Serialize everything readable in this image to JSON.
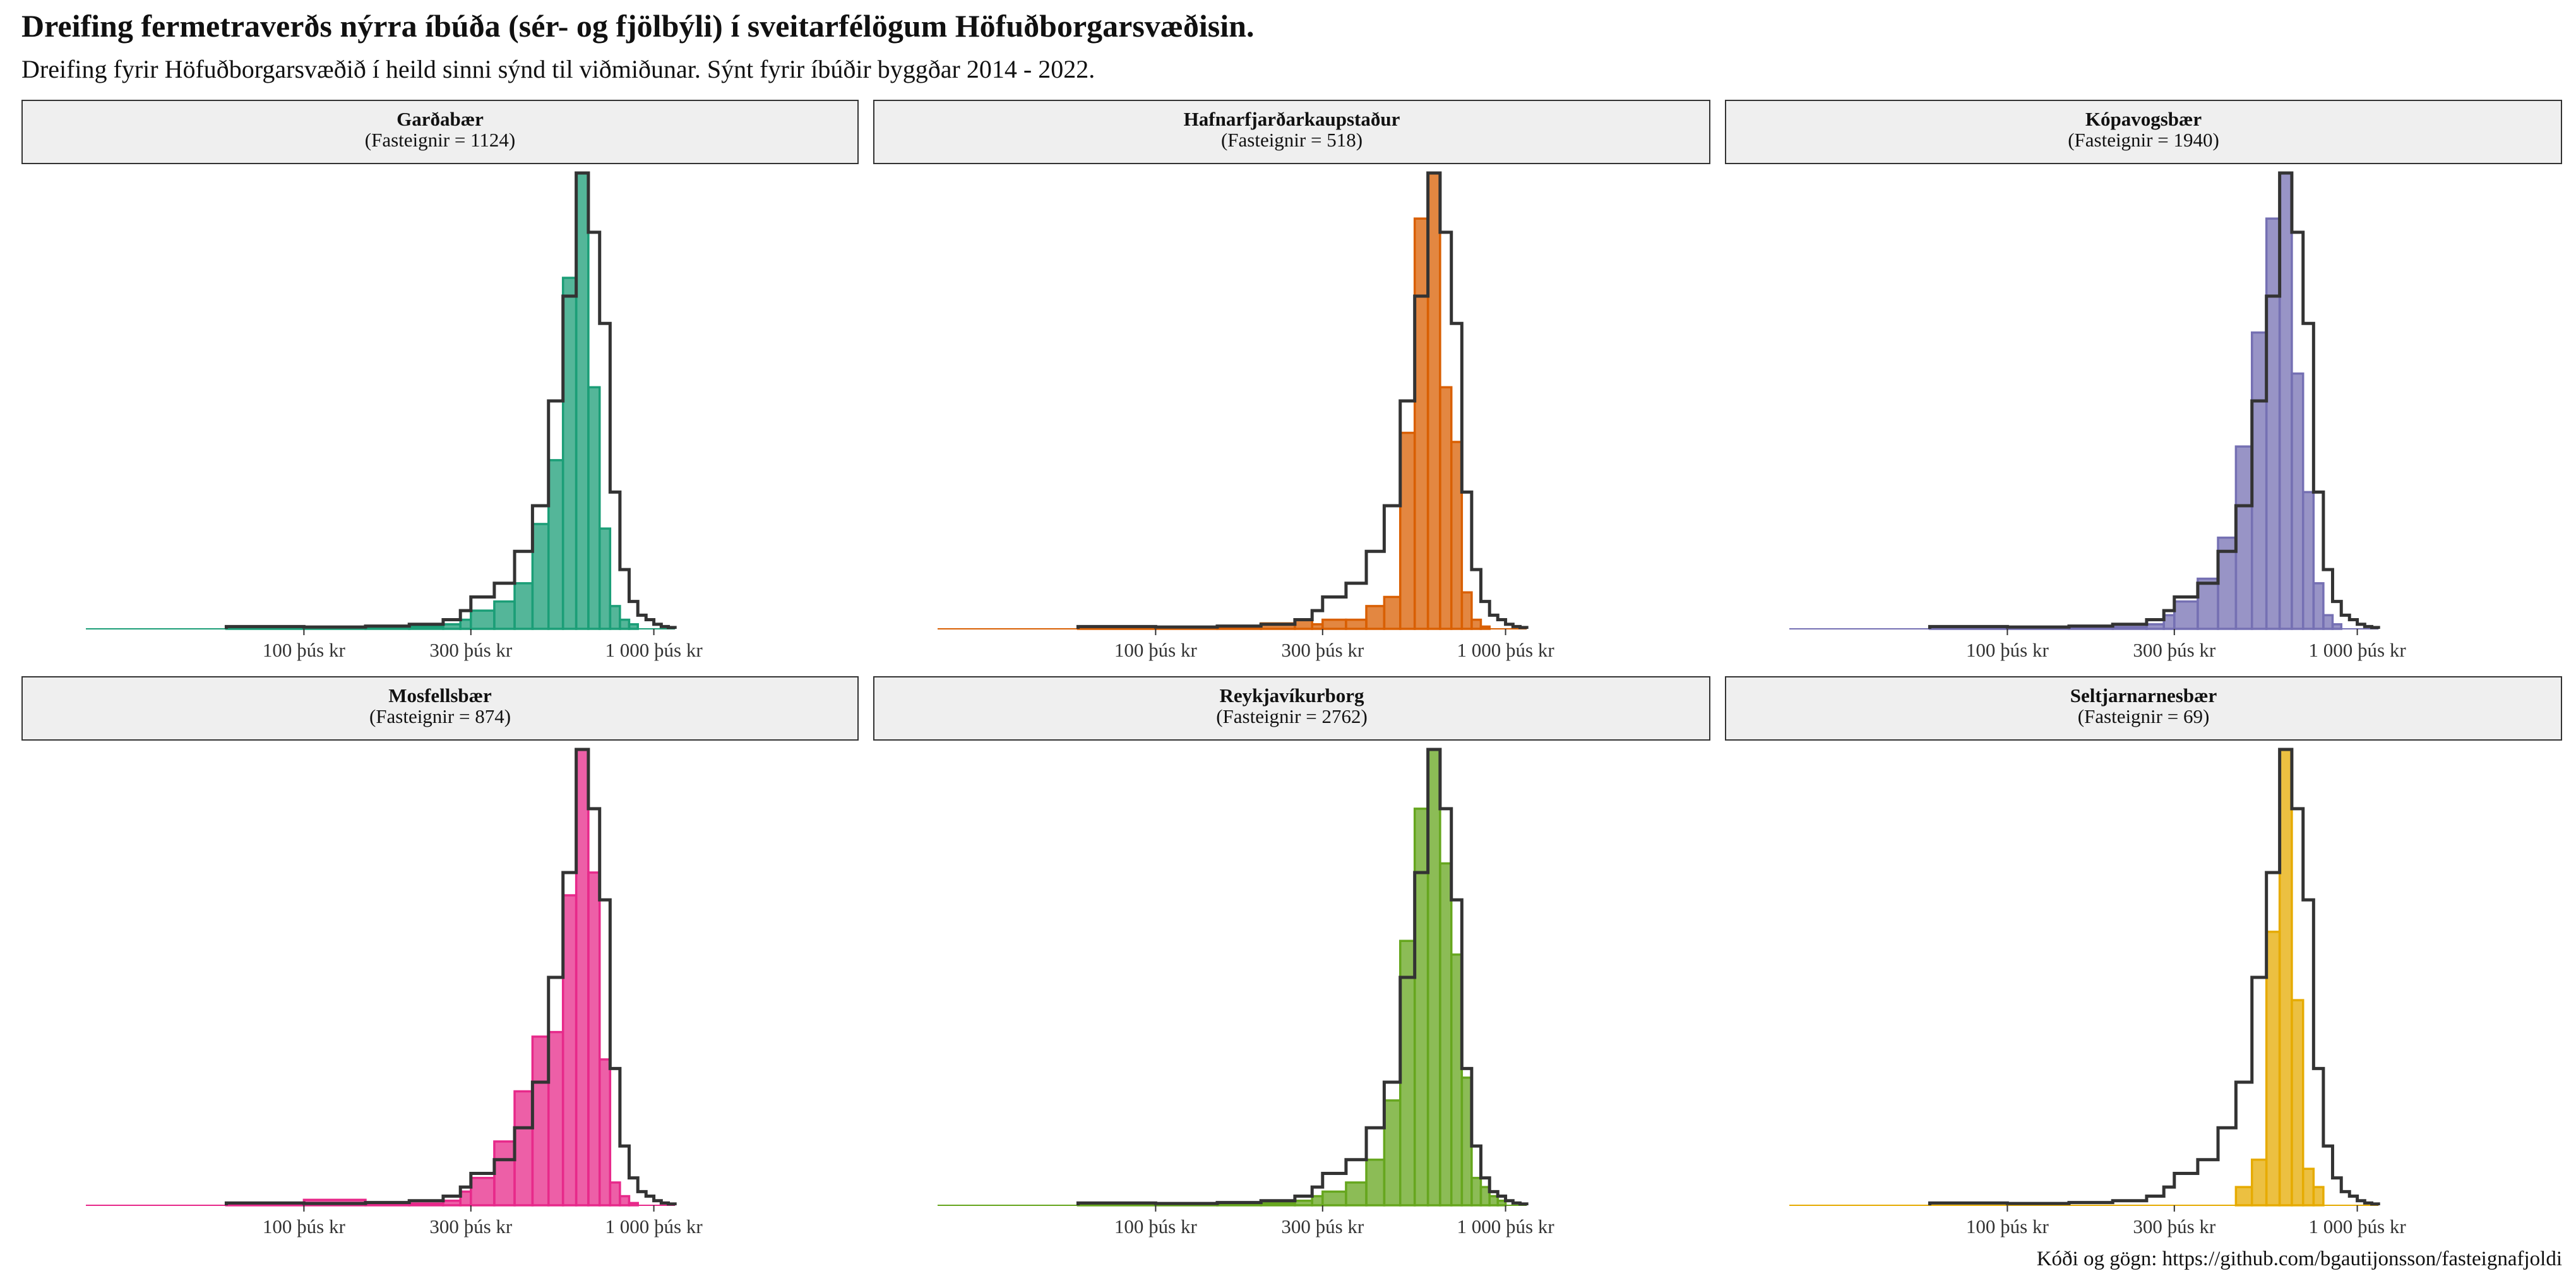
{
  "title": "Dreifing fermetraverðs nýrra íbúða (sér- og fjölbýli) í sveitarfélögum Höfuðborgarsvæðisin.",
  "subtitle": "Dreifing fyrir Höfuðborgarsvæðið í heild sinni sýnd til viðmiðunar. Sýnt fyrir íbúðir byggðar 2014 - 2022.",
  "caption": "Kóði og gögn: https://github.com/bgautijonsson/fasteignafjoldi",
  "chart_data": {
    "type": "histogram",
    "x_scale": "log10",
    "xlim": [
      20,
      3000
    ],
    "x_ticks": [
      100,
      300,
      1000
    ],
    "x_tick_labels": [
      "100 þús kr",
      "300 þús kr",
      "1 000 þús kr"
    ],
    "bin_lower_edges": [
      60,
      100,
      150,
      200,
      250,
      280,
      300,
      350,
      400,
      450,
      500,
      550,
      600,
      650,
      700,
      750,
      800,
      850,
      900,
      950,
      1000,
      1050,
      1100
    ],
    "bins_note": "",
    "reference": {
      "values_relative": [
        0.005,
        0.004,
        0.006,
        0.01,
        0.02,
        0.04,
        0.07,
        0.1,
        0.17,
        0.27,
        0.5,
        0.73,
        1.0,
        0.87,
        0.67,
        0.3,
        0.13,
        0.06,
        0.03,
        0.02,
        0.01,
        0.005,
        0.003
      ],
      "color": "#333333"
    },
    "panels": [
      {
        "name": "Garðabær",
        "count_label": "(Fasteignir = 1124)",
        "color": "#1b9e77",
        "values_relative": [
          0.003,
          0.002,
          0.003,
          0.005,
          0.01,
          0.02,
          0.04,
          0.06,
          0.1,
          0.23,
          0.37,
          0.77,
          1.0,
          0.53,
          0.22,
          0.05,
          0.02,
          0.01,
          0,
          0,
          0,
          0,
          0
        ]
      },
      {
        "name": "Hafnarfjarðarkaupstaður",
        "count_label": "(Fasteignir = 518)",
        "color": "#d95f02",
        "values_relative": [
          0.002,
          0.002,
          0.004,
          0.012,
          0.02,
          0.01,
          0.02,
          0.02,
          0.05,
          0.07,
          0.43,
          0.9,
          1.0,
          0.53,
          0.41,
          0.08,
          0.02,
          0.005,
          0,
          0,
          0,
          0,
          0
        ]
      },
      {
        "name": "Kópavogsbær",
        "count_label": "(Fasteignir = 1940)",
        "color": "#7570b3",
        "values_relative": [
          0.003,
          0.002,
          0.003,
          0.004,
          0.01,
          0.03,
          0.06,
          0.11,
          0.2,
          0.4,
          0.65,
          0.9,
          1.0,
          0.56,
          0.3,
          0.1,
          0.03,
          0.01,
          0,
          0,
          0,
          0,
          0
        ]
      },
      {
        "name": "Mosfellsbær",
        "count_label": "(Fasteignir = 874)",
        "color": "#e7298a",
        "values_relative": [
          0.003,
          0.012,
          0.003,
          0.004,
          0.01,
          0.03,
          0.06,
          0.14,
          0.25,
          0.37,
          0.38,
          0.68,
          1.0,
          0.73,
          0.32,
          0.05,
          0.02,
          0.005,
          0,
          0,
          0,
          0,
          0
        ]
      },
      {
        "name": "Reykjavíkurborg",
        "count_label": "(Fasteignir = 2762)",
        "color": "#66a61e",
        "values_relative": [
          0.002,
          0.002,
          0.003,
          0.005,
          0.01,
          0.02,
          0.03,
          0.05,
          0.1,
          0.23,
          0.58,
          0.87,
          1.0,
          0.75,
          0.55,
          0.28,
          0.06,
          0.04,
          0.02,
          0.01,
          0,
          0,
          0
        ]
      },
      {
        "name": "Seltjarnarnesbær",
        "count_label": "(Fasteignir = 69)",
        "color": "#e6ab02",
        "values_relative": [
          0,
          0,
          0,
          0,
          0,
          0,
          0,
          0,
          0,
          0.04,
          0.1,
          0.6,
          1.0,
          0.45,
          0.08,
          0.04,
          0,
          0,
          0,
          0,
          0,
          0,
          0
        ]
      }
    ]
  }
}
